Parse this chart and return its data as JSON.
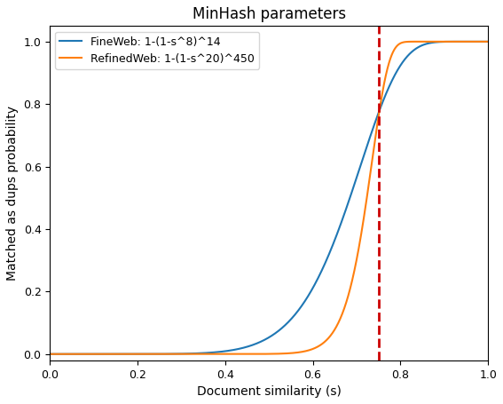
{
  "title": "MinHash parameters",
  "xlabel": "Document similarity (s)",
  "ylabel": "Matched as dups probability",
  "xlim": [
    0.0,
    1.0
  ],
  "ylim": [
    -0.02,
    1.05
  ],
  "vline_x": 0.75,
  "vline_color": "#cc0000",
  "vline_style": "--",
  "vline_lw": 2.0,
  "curve1": {
    "label": "FineWeb: 1-(1-s^8)^14",
    "r": 8,
    "b": 14,
    "color": "#1f77b4"
  },
  "curve2": {
    "label": "RefinedWeb: 1-(1-s^20)^450",
    "r": 20,
    "b": 450,
    "color": "#ff7f0e"
  },
  "legend_loc": "upper left",
  "figsize": [
    5.67,
    4.55
  ],
  "dpi": 100,
  "title_fontsize": 12,
  "label_fontsize": 10,
  "legend_fontsize": 9,
  "tick_fontsize": 9,
  "linewidth": 1.5
}
